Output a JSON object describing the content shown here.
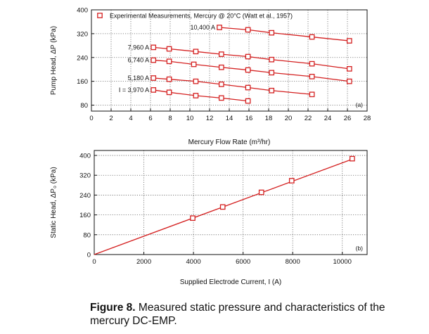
{
  "chart_data": [
    {
      "type": "line",
      "panel_label": "(a)",
      "xlabel": "Mercury Flow Rate (m³/hr)",
      "ylabel": "Pump Head, ΔP (kPa)",
      "xlim": [
        0,
        28
      ],
      "ylim": [
        60,
        400
      ],
      "xticks": [
        0,
        2,
        4,
        6,
        8,
        10,
        12,
        14,
        16,
        18,
        20,
        22,
        24,
        26,
        28
      ],
      "yticks": [
        80,
        160,
        240,
        320,
        400
      ],
      "grid": true,
      "legend": "Experimental Measurements, Mercury @ 20°C (Watt et al., 1957)",
      "legend_position": "top-left",
      "series": [
        {
          "name": "10,400 A",
          "x": [
            13.0,
            15.9,
            18.3,
            22.4,
            26.2
          ],
          "y": [
            341,
            333,
            323,
            309,
            296
          ]
        },
        {
          "name": "7,960 A",
          "x": [
            6.3,
            7.9,
            10.6,
            13.2,
            15.9,
            18.3,
            22.4,
            26.2
          ],
          "y": [
            274,
            269,
            260,
            251,
            243,
            233,
            219,
            202
          ]
        },
        {
          "name": "6,740 A",
          "x": [
            6.3,
            7.9,
            10.4,
            13.2,
            15.9,
            18.3,
            22.4,
            26.2
          ],
          "y": [
            231,
            227,
            217,
            207,
            198,
            189,
            176,
            160
          ]
        },
        {
          "name": "5,180 A",
          "x": [
            6.3,
            7.9,
            10.6,
            13.2,
            15.9,
            18.3,
            22.4
          ],
          "y": [
            171,
            167,
            160,
            150,
            139,
            129,
            116
          ]
        },
        {
          "name": "I = 3,970 A",
          "x": [
            6.3,
            7.9,
            10.6,
            13.2,
            15.9
          ],
          "y": [
            131,
            123,
            112,
            104,
            94
          ]
        }
      ]
    },
    {
      "type": "line",
      "panel_label": "(b)",
      "xlabel": "Supplied Electrode Current, I (A)",
      "ylabel": "Static Head, ΔP₀ (kPa)",
      "xlim": [
        0,
        11000
      ],
      "ylim": [
        0,
        420
      ],
      "xticks": [
        0,
        2000,
        4000,
        6000,
        8000,
        10000
      ],
      "yticks": [
        0,
        80,
        160,
        240,
        320,
        400
      ],
      "grid": true,
      "fit_line": {
        "x": [
          0,
          10400
        ],
        "y": [
          0,
          385
        ]
      },
      "series": [
        {
          "name": "Static head",
          "x": [
            3970,
            5180,
            6740,
            7960,
            10400
          ],
          "y": [
            147,
            192,
            251,
            298,
            387
          ]
        }
      ]
    }
  ],
  "caption": {
    "label": "Figure 8.",
    "text": " Measured static pressure and characteristics of the mercury DC-EMP."
  },
  "colors": {
    "series": "#d42020",
    "grid": "#666666",
    "text": "#111111"
  }
}
